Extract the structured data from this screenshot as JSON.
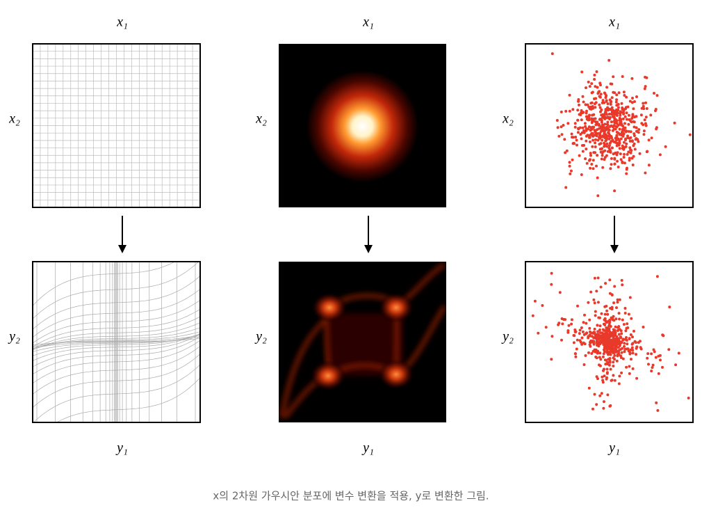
{
  "panels": [
    {
      "top_label": "x₁",
      "top_side_label": "x₂",
      "bottom_side_label": "y₂",
      "bottom_label": "y₁"
    },
    {
      "top_label": "x₁",
      "top_side_label": "x₂",
      "bottom_side_label": "y₂",
      "bottom_label": "y₁"
    },
    {
      "top_label": "x₁",
      "top_side_label": "x₂",
      "bottom_side_label": "y₂",
      "bottom_label": "y₁"
    }
  ],
  "caption": "x의 2차원 가우시안 분포에 변수 변환을 적용, y로 변환한 그림."
}
